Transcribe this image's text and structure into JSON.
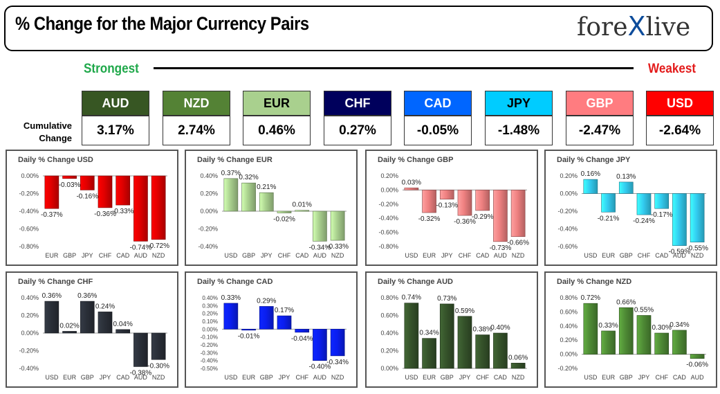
{
  "header": {
    "title": "% Change for the Major Currency Pairs",
    "logo_left": "fore",
    "logo_x": "X",
    "logo_right": "live"
  },
  "strength": {
    "strongest": "Strongest",
    "weakest": "Weakest",
    "cumulative_label_1": "Cumulative",
    "cumulative_label_2": "Change",
    "currencies": [
      {
        "name": "AUD",
        "value": "3.17%",
        "color": "#375623",
        "text_color": "#ffffff"
      },
      {
        "name": "NZD",
        "value": "2.74%",
        "color": "#548235",
        "text_color": "#ffffff"
      },
      {
        "name": "EUR",
        "value": "0.46%",
        "color": "#a9d08e",
        "text_color": "#000000"
      },
      {
        "name": "CHF",
        "value": "0.27%",
        "color": "#00005c",
        "text_color": "#ffffff"
      },
      {
        "name": "CAD",
        "value": "-0.05%",
        "color": "#0066ff",
        "text_color": "#ffffff"
      },
      {
        "name": "JPY",
        "value": "-1.48%",
        "color": "#00ccff",
        "text_color": "#000000"
      },
      {
        "name": "GBP",
        "value": "-2.47%",
        "color": "#ff7c80",
        "text_color": "#ffffff"
      },
      {
        "name": "USD",
        "value": "-2.64%",
        "color": "#ff0000",
        "text_color": "#ffffff"
      }
    ]
  },
  "chart_data": [
    {
      "type": "bar",
      "title": "Daily % Change USD",
      "color": "#e00000",
      "categories": [
        "EUR",
        "GBP",
        "JPY",
        "CHF",
        "CAD",
        "AUD",
        "NZD"
      ],
      "values": [
        -0.37,
        -0.03,
        -0.16,
        -0.36,
        -0.33,
        -0.74,
        -0.72
      ],
      "labels": [
        "-0.37%",
        "-0.03%",
        "-0.16%",
        "-0.36%",
        "-0.33%",
        "-0.74%",
        "-0.72%"
      ],
      "ylim": [
        -0.8,
        0.0
      ],
      "yticks": [
        "0.00%",
        "-0.20%",
        "-0.40%",
        "-0.60%",
        "-0.80%"
      ],
      "ytick_values": [
        0,
        -0.2,
        -0.4,
        -0.6,
        -0.8
      ]
    },
    {
      "type": "bar",
      "title": "Daily % Change EUR",
      "color": "#a9d08e",
      "categories": [
        "USD",
        "GBP",
        "JPY",
        "CHF",
        "CAD",
        "AUD",
        "NZD"
      ],
      "values": [
        0.37,
        0.32,
        0.21,
        -0.02,
        0.01,
        -0.34,
        -0.33
      ],
      "labels": [
        "0.37%",
        "0.32%",
        "0.21%",
        "-0.02%",
        "0.01%",
        "-0.34%",
        "-0.33%"
      ],
      "ylim": [
        -0.4,
        0.4
      ],
      "yticks": [
        "0.40%",
        "0.20%",
        "0.00%",
        "-0.20%",
        "-0.40%"
      ],
      "ytick_values": [
        0.4,
        0.2,
        0,
        -0.2,
        -0.4
      ]
    },
    {
      "type": "bar",
      "title": "Daily % Change GBP",
      "color": "#ee8080",
      "categories": [
        "USD",
        "EUR",
        "JPY",
        "CHF",
        "CAD",
        "AUD",
        "NZD"
      ],
      "values": [
        0.03,
        -0.32,
        -0.13,
        -0.36,
        -0.29,
        -0.73,
        -0.66
      ],
      "labels": [
        "0.03%",
        "-0.32%",
        "-0.13%",
        "-0.36%",
        "-0.29%",
        "-0.73%",
        "-0.66%"
      ],
      "ylim": [
        -0.8,
        0.2
      ],
      "yticks": [
        "0.20%",
        "0.00%",
        "-0.20%",
        "-0.40%",
        "-0.60%",
        "-0.80%"
      ],
      "ytick_values": [
        0.2,
        0,
        -0.2,
        -0.4,
        -0.6,
        -0.8
      ]
    },
    {
      "type": "bar",
      "title": "Daily % Change JPY",
      "color": "#33ccf0",
      "categories": [
        "USD",
        "EUR",
        "GBP",
        "CHF",
        "CAD",
        "AUD",
        "NZD"
      ],
      "values": [
        0.16,
        -0.21,
        0.13,
        -0.24,
        -0.17,
        -0.59,
        -0.55
      ],
      "labels": [
        "0.16%",
        "-0.21%",
        "0.13%",
        "-0.24%",
        "-0.17%",
        "-0.59%",
        "-0.55%"
      ],
      "ylim": [
        -0.6,
        0.2
      ],
      "yticks": [
        "0.20%",
        "0.00%",
        "-0.20%",
        "-0.40%",
        "-0.60%"
      ],
      "ytick_values": [
        0.2,
        0,
        -0.2,
        -0.4,
        -0.6
      ]
    },
    {
      "type": "bar",
      "title": "Daily % Change CHF",
      "color": "#2a2f38",
      "categories": [
        "USD",
        "EUR",
        "GBP",
        "JPY",
        "CAD",
        "AUD",
        "NZD"
      ],
      "values": [
        0.36,
        0.02,
        0.36,
        0.24,
        0.04,
        -0.38,
        -0.3
      ],
      "labels": [
        "0.36%",
        "0.02%",
        "0.36%",
        "0.24%",
        "0.04%",
        "-0.38%",
        "-0.30%"
      ],
      "ylim": [
        -0.4,
        0.4
      ],
      "yticks": [
        "0.40%",
        "0.20%",
        "0.00%",
        "-0.20%",
        "-0.40%"
      ],
      "ytick_values": [
        0.4,
        0.2,
        0,
        -0.2,
        -0.4
      ]
    },
    {
      "type": "bar",
      "title": "Daily % Change CAD",
      "color": "#0a1ef0",
      "categories": [
        "USD",
        "EUR",
        "GBP",
        "JPY",
        "CHF",
        "AUD",
        "NZD"
      ],
      "values": [
        0.33,
        -0.01,
        0.29,
        0.17,
        -0.04,
        -0.4,
        -0.34
      ],
      "labels": [
        "0.33%",
        "-0.01%",
        "0.29%",
        "0.17%",
        "-0.04%",
        "-0.40%",
        "-0.34%"
      ],
      "ylim": [
        -0.5,
        0.4
      ],
      "yticks": [
        "0.40%",
        "0.30%",
        "0.20%",
        "0.10%",
        "0.00%",
        "-0.10%",
        "-0.20%",
        "-0.30%",
        "-0.40%",
        "-0.50%"
      ],
      "ytick_values": [
        0.4,
        0.3,
        0.2,
        0.1,
        0,
        -0.1,
        -0.2,
        -0.3,
        -0.4,
        -0.5
      ]
    },
    {
      "type": "bar",
      "title": "Daily % Change AUD",
      "color": "#35522a",
      "categories": [
        "USD",
        "EUR",
        "GBP",
        "JPY",
        "CHF",
        "CAD",
        "NZD"
      ],
      "values": [
        0.74,
        0.34,
        0.73,
        0.59,
        0.38,
        0.4,
        0.06
      ],
      "labels": [
        "0.74%",
        "0.34%",
        "0.73%",
        "0.59%",
        "0.38%",
        "0.40%",
        "0.06%"
      ],
      "ylim": [
        0.0,
        0.8
      ],
      "yticks": [
        "0.80%",
        "0.60%",
        "0.40%",
        "0.20%",
        "0.00%"
      ],
      "ytick_values": [
        0.8,
        0.6,
        0.4,
        0.2,
        0
      ]
    },
    {
      "type": "bar",
      "title": "Daily % Change NZD",
      "color": "#4e8a35",
      "categories": [
        "USD",
        "EUR",
        "GBP",
        "JPY",
        "CHF",
        "CAD",
        "AUD"
      ],
      "values": [
        0.72,
        0.33,
        0.66,
        0.55,
        0.3,
        0.34,
        -0.06
      ],
      "labels": [
        "0.72%",
        "0.33%",
        "0.66%",
        "0.55%",
        "0.30%",
        "0.34%",
        "-0.06%"
      ],
      "ylim": [
        -0.2,
        0.8
      ],
      "yticks": [
        "0.80%",
        "0.60%",
        "0.40%",
        "0.20%",
        "0.00%",
        "-0.20%"
      ],
      "ytick_values": [
        0.8,
        0.6,
        0.4,
        0.2,
        0,
        -0.2
      ]
    }
  ]
}
